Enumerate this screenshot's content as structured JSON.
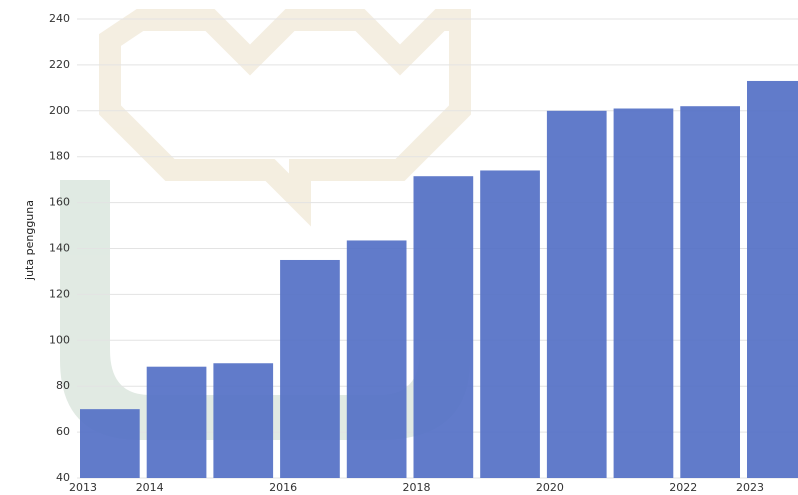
{
  "chart_data": {
    "type": "bar",
    "y_label": "juta pengguna",
    "categories": [
      "2013",
      "2014",
      null,
      "2016",
      null,
      "2018",
      null,
      "2020",
      null,
      "2022",
      "2023"
    ],
    "values": [
      70,
      88.5,
      90,
      135,
      143.5,
      171.5,
      174,
      200,
      201,
      202,
      213
    ],
    "color": "#5470c6",
    "ylim": [
      40,
      240
    ],
    "yticks": [
      40,
      60,
      80,
      100,
      120,
      140,
      160,
      180,
      200,
      220,
      240
    ],
    "grid": true
  }
}
